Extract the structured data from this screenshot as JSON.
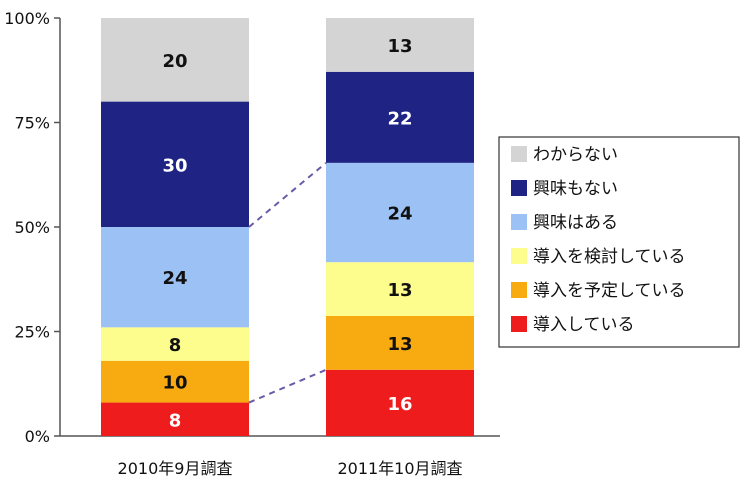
{
  "chart_data": {
    "type": "bar",
    "stacked": true,
    "normalized": true,
    "categories": [
      "2010年9月調査",
      "2011年10月調査"
    ],
    "series": [
      {
        "name": "導入している",
        "values": [
          8,
          16
        ],
        "color": "#ee1c1c",
        "label_color": "#ffffff"
      },
      {
        "name": "導入を予定している",
        "values": [
          10,
          13
        ],
        "color": "#f8aa11",
        "label_color": "#111111"
      },
      {
        "name": "導入を検討している",
        "values": [
          8,
          13
        ],
        "color": "#fdfd8e",
        "label_color": "#111111"
      },
      {
        "name": "興味はある",
        "values": [
          24,
          24
        ],
        "color": "#9cc2f5",
        "label_color": "#111111"
      },
      {
        "name": "興味もない",
        "values": [
          30,
          22
        ],
        "color": "#1f2484",
        "label_color": "#ffffff"
      },
      {
        "name": "わからない",
        "values": [
          20,
          13
        ],
        "color": "#d4d4d4",
        "label_color": "#111111"
      }
    ],
    "yticks": [
      "0%",
      "25%",
      "50%",
      "75%",
      "100%"
    ],
    "ylim": [
      0,
      100
    ],
    "grid": false,
    "legend_position": "right",
    "legend_order": [
      "わからない",
      "興味もない",
      "興味はある",
      "導入を検討している",
      "導入を予定している",
      "導入している"
    ]
  }
}
